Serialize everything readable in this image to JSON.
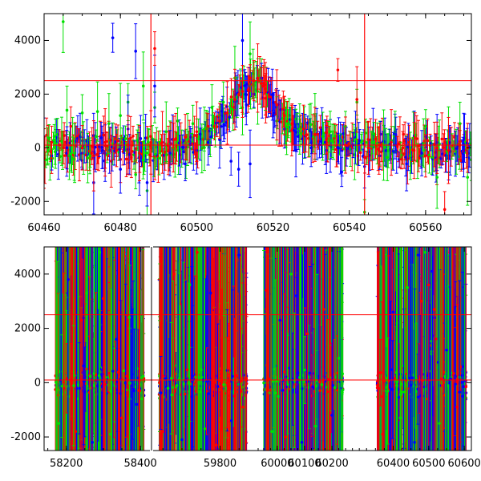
{
  "chart_data": [
    {
      "type": "scatter",
      "panel": "top",
      "title": "",
      "xlabel": "",
      "ylabel": "",
      "xlim": [
        60460,
        60572
      ],
      "ylim": [
        -2500,
        5000
      ],
      "xticks": [
        60460,
        60480,
        60500,
        60520,
        60540,
        60560
      ],
      "yticks": [
        -2000,
        0,
        2000,
        4000
      ],
      "error_bars": true,
      "series": [
        {
          "color": "#00e000",
          "points": [
            [
              60461,
              -100
            ],
            [
              60463,
              150
            ],
            [
              60465,
              4700
            ],
            [
              60466,
              1400
            ],
            [
              60468,
              -200
            ],
            [
              60470,
              1300
            ],
            [
              60472,
              -300
            ],
            [
              60474,
              1350
            ],
            [
              60477,
              900
            ],
            [
              60480,
              1200
            ],
            [
              60482,
              1700
            ],
            [
              60484,
              -1000
            ],
            [
              60486,
              2300
            ],
            [
              60487,
              -1600
            ],
            [
              60489,
              1500
            ],
            [
              60492,
              600
            ],
            [
              60495,
              1000
            ],
            [
              60499,
              900
            ],
            [
              60502,
              700
            ],
            [
              60504,
              1500
            ],
            [
              60507,
              1700
            ],
            [
              60510,
              2600
            ],
            [
              60512,
              1500
            ],
            [
              60514,
              3500
            ],
            [
              60516,
              2100
            ],
            [
              60518,
              2200
            ],
            [
              60521,
              1000
            ],
            [
              60524,
              900
            ],
            [
              60527,
              700
            ],
            [
              60531,
              800
            ],
            [
              60535,
              600
            ],
            [
              60539,
              800
            ],
            [
              60542,
              1700
            ],
            [
              60544,
              -2400
            ],
            [
              60546,
              200
            ],
            [
              60549,
              100
            ],
            [
              60552,
              600
            ],
            [
              60556,
              -300
            ],
            [
              60560,
              800
            ],
            [
              60563,
              -1100
            ],
            [
              60566,
              300
            ],
            [
              60569,
              900
            ],
            [
              60571,
              -1100
            ]
          ]
        },
        {
          "color": "#0000ff",
          "points": [
            [
              60462,
              -300
            ],
            [
              60466,
              0
            ],
            [
              60470,
              -200
            ],
            [
              60473,
              -1300
            ],
            [
              60476,
              -200
            ],
            [
              60478,
              4100
            ],
            [
              60480,
              -800
            ],
            [
              60482,
              700
            ],
            [
              60484,
              3600
            ],
            [
              60485,
              -500
            ],
            [
              60487,
              -1300
            ],
            [
              60489,
              2300
            ],
            [
              60493,
              -200
            ],
            [
              60497,
              -600
            ],
            [
              60500,
              -100
            ],
            [
              60503,
              200
            ],
            [
              60506,
              300
            ],
            [
              60509,
              -500
            ],
            [
              60511,
              -800
            ],
            [
              60512,
              4000
            ],
            [
              60513,
              1600
            ],
            [
              60514,
              -600
            ],
            [
              60515,
              2000
            ],
            [
              60517,
              2600
            ],
            [
              60520,
              1200
            ],
            [
              60523,
              700
            ],
            [
              60526,
              -100
            ],
            [
              60530,
              0
            ],
            [
              60534,
              -100
            ],
            [
              60538,
              -900
            ],
            [
              60541,
              100
            ],
            [
              60544,
              -700
            ],
            [
              60548,
              -300
            ],
            [
              60552,
              100
            ],
            [
              60555,
              -600
            ],
            [
              60559,
              -200
            ],
            [
              60563,
              200
            ],
            [
              60566,
              -400
            ],
            [
              60570,
              100
            ]
          ]
        },
        {
          "color": "#ff0000",
          "points": [
            [
              60460,
              -400
            ],
            [
              60462,
              200
            ],
            [
              60464,
              100
            ],
            [
              60467,
              800
            ],
            [
              60470,
              0
            ],
            [
              60473,
              -300
            ],
            [
              60476,
              200
            ],
            [
              60479,
              -100
            ],
            [
              60482,
              100
            ],
            [
              60485,
              -200
            ],
            [
              60488,
              200
            ],
            [
              60489,
              3700
            ],
            [
              60491,
              200
            ],
            [
              60494,
              300
            ],
            [
              60497,
              400
            ],
            [
              60500,
              600
            ],
            [
              60503,
              800
            ],
            [
              60506,
              1000
            ],
            [
              60508,
              1300
            ],
            [
              60510,
              1800
            ],
            [
              60512,
              2100
            ],
            [
              60514,
              2600
            ],
            [
              60515,
              2500
            ],
            [
              60516,
              2600
            ],
            [
              60517,
              2400
            ],
            [
              60518,
              2200
            ],
            [
              60519,
              1900
            ],
            [
              60521,
              1600
            ],
            [
              60523,
              1200
            ],
            [
              60525,
              900
            ],
            [
              60528,
              700
            ],
            [
              60531,
              500
            ],
            [
              60534,
              300
            ],
            [
              60537,
              2900
            ],
            [
              60539,
              100
            ],
            [
              60542,
              1800
            ],
            [
              60545,
              0
            ],
            [
              60548,
              100
            ],
            [
              60551,
              200
            ],
            [
              60554,
              0
            ],
            [
              60557,
              -100
            ],
            [
              60560,
              -300
            ],
            [
              60563,
              0
            ],
            [
              60565,
              -2300
            ],
            [
              60566,
              -100
            ],
            [
              60569,
              100
            ],
            [
              60571,
              0
            ]
          ]
        }
      ],
      "hlines": [
        {
          "y": 2500,
          "color": "#ff0000"
        },
        {
          "y": 100,
          "color": "#ff0000"
        }
      ],
      "vlines": [
        {
          "x": 60488,
          "color": "#ff0000"
        },
        {
          "x": 60544,
          "color": "#ff0000"
        }
      ]
    },
    {
      "type": "scatter",
      "panel": "bottom",
      "title": "",
      "xlabel": "",
      "ylabel": "",
      "broken_x_axis": true,
      "ylim": [
        -2500,
        5000
      ],
      "yticks": [
        -2000,
        0,
        2000,
        4000
      ],
      "error_bars": true,
      "segments": [
        {
          "xlim": [
            58140,
            58430
          ],
          "xticks": [
            58200,
            58400
          ],
          "data_range": [
            58170,
            58410
          ],
          "points": [
            [
              58180,
              -1500,
              "#00e000"
            ],
            [
              58205,
              3800,
              "#0000ff"
            ],
            [
              58225,
              -1800,
              "#ff0000"
            ],
            [
              58240,
              2300,
              "#ff0000"
            ],
            [
              58255,
              3300,
              "#00e000"
            ],
            [
              58270,
              -2200,
              "#0000ff"
            ],
            [
              58290,
              4800,
              "#00e000"
            ],
            [
              58300,
              3100,
              "#ff0000"
            ],
            [
              58320,
              -1900,
              "#00e000"
            ],
            [
              58335,
              1600,
              "#0000ff"
            ],
            [
              58350,
              -1300,
              "#ff0000"
            ],
            [
              58370,
              2400,
              "#00e000"
            ],
            [
              58390,
              -800,
              "#0000ff"
            ]
          ]
        },
        {
          "xlim": [
            59620,
            59900
          ],
          "xticks": [
            59800
          ],
          "data_range": [
            59640,
            59870
          ],
          "points": [
            [
              59650,
              -1800,
              "#ff0000"
            ],
            [
              59680,
              4000,
              "#ff0000"
            ],
            [
              59700,
              -2100,
              "#0000ff"
            ],
            [
              59720,
              3600,
              "#00e000"
            ],
            [
              59740,
              4800,
              "#ff0000"
            ],
            [
              59760,
              -1700,
              "#00e000"
            ],
            [
              59775,
              3300,
              "#0000ff"
            ],
            [
              59790,
              -2300,
              "#ff0000"
            ],
            [
              59810,
              2500,
              "#00e000"
            ],
            [
              59830,
              -1400,
              "#0000ff"
            ],
            [
              59850,
              4700,
              "#0000ff"
            ],
            [
              59860,
              -900,
              "#ff0000"
            ]
          ]
        },
        {
          "xlim": [
            59930,
            60320
          ],
          "xticks": [
            60000,
            60100,
            60200
          ],
          "data_range": [
            59950,
            60240
          ],
          "points": [
            [
              59960,
              3400,
              "#ff0000"
            ],
            [
              59980,
              -1800,
              "#00e000"
            ],
            [
              60010,
              2300,
              "#0000ff"
            ],
            [
              60030,
              -2000,
              "#ff0000"
            ],
            [
              60050,
              4000,
              "#00e000"
            ],
            [
              60070,
              3200,
              "#0000ff"
            ],
            [
              60090,
              -2200,
              "#0000ff"
            ],
            [
              60110,
              1800,
              "#ff0000"
            ],
            [
              60140,
              -1600,
              "#00e000"
            ],
            [
              60170,
              2700,
              "#ff0000"
            ],
            [
              60200,
              -1200,
              "#0000ff"
            ],
            [
              60225,
              900,
              "#00e000"
            ]
          ]
        },
        {
          "xlim": [
            60320,
            60620
          ],
          "xticks": [
            60400,
            60500,
            60600
          ],
          "data_range": [
            60355,
            60605
          ],
          "points": [
            [
              60370,
              -1900,
              "#ff0000"
            ],
            [
              60400,
              2600,
              "#0000ff"
            ],
            [
              60420,
              -1300,
              "#00e000"
            ],
            [
              60440,
              3500,
              "#00e000"
            ],
            [
              60460,
              -2200,
              "#0000ff"
            ],
            [
              60470,
              4700,
              "#0000ff"
            ],
            [
              60480,
              3000,
              "#ff0000"
            ],
            [
              60490,
              4800,
              "#00e000"
            ],
            [
              60500,
              3600,
              "#ff0000"
            ],
            [
              60510,
              4100,
              "#0000ff"
            ],
            [
              60515,
              2700,
              "#ff0000"
            ],
            [
              60530,
              -1500,
              "#00e000"
            ],
            [
              60550,
              1200,
              "#0000ff"
            ],
            [
              60580,
              -900,
              "#ff0000"
            ]
          ]
        }
      ],
      "hlines": [
        {
          "y": 2500,
          "color": "#ff0000"
        },
        {
          "y": 100,
          "color": "#ff0000"
        }
      ]
    }
  ]
}
